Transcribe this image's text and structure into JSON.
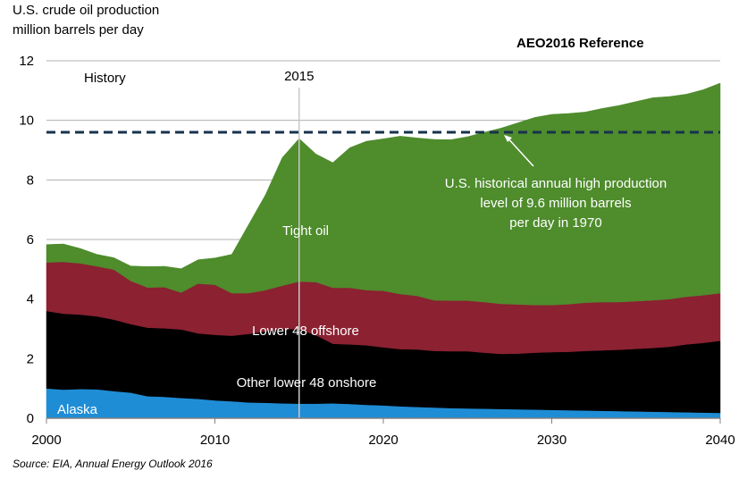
{
  "chart_data": {
    "type": "area",
    "stacked": true,
    "ylabel_line1": "U.S. crude oil production",
    "ylabel_line2": "million barrels per day",
    "scenario": "AEO2016 Reference",
    "history_label": "History",
    "marker_year": 2015,
    "marker_label": "2015",
    "xlim": [
      2000,
      2040
    ],
    "ylim": [
      0,
      12
    ],
    "x_ticks": [
      2000,
      2010,
      2020,
      2030,
      2040
    ],
    "y_ticks": [
      0,
      2,
      4,
      6,
      8,
      10,
      12
    ],
    "grid": "horizontal",
    "x": [
      2000,
      2001,
      2002,
      2003,
      2004,
      2005,
      2006,
      2007,
      2008,
      2009,
      2010,
      2011,
      2012,
      2013,
      2014,
      2015,
      2016,
      2017,
      2018,
      2019,
      2020,
      2021,
      2022,
      2023,
      2024,
      2025,
      2026,
      2027,
      2028,
      2029,
      2030,
      2031,
      2032,
      2033,
      2034,
      2035,
      2036,
      2037,
      2038,
      2039,
      2040
    ],
    "series": [
      {
        "name": "Alaska",
        "color": "#1f8dd6",
        "values": [
          1.0,
          0.96,
          0.98,
          0.97,
          0.91,
          0.86,
          0.74,
          0.72,
          0.68,
          0.65,
          0.6,
          0.57,
          0.53,
          0.52,
          0.5,
          0.49,
          0.49,
          0.5,
          0.48,
          0.45,
          0.43,
          0.4,
          0.38,
          0.36,
          0.34,
          0.33,
          0.32,
          0.31,
          0.3,
          0.29,
          0.28,
          0.27,
          0.26,
          0.25,
          0.24,
          0.23,
          0.22,
          0.21,
          0.2,
          0.19,
          0.18
        ]
      },
      {
        "name": "Other lower 48 onshore",
        "color": "#000000",
        "values": [
          2.6,
          2.55,
          2.5,
          2.45,
          2.4,
          2.3,
          2.3,
          2.3,
          2.3,
          2.2,
          2.2,
          2.2,
          2.3,
          2.4,
          2.5,
          2.5,
          2.3,
          2.0,
          2.0,
          2.0,
          1.95,
          1.92,
          1.93,
          1.9,
          1.91,
          1.92,
          1.88,
          1.85,
          1.87,
          1.91,
          1.94,
          1.96,
          2.0,
          2.03,
          2.06,
          2.1,
          2.14,
          2.19,
          2.28,
          2.34,
          2.42
        ]
      },
      {
        "name": "Lower 48 offshore",
        "color": "#8b2131",
        "values": [
          1.63,
          1.74,
          1.72,
          1.68,
          1.68,
          1.45,
          1.35,
          1.38,
          1.24,
          1.67,
          1.68,
          1.43,
          1.37,
          1.38,
          1.45,
          1.6,
          1.78,
          1.88,
          1.9,
          1.85,
          1.9,
          1.85,
          1.8,
          1.7,
          1.7,
          1.7,
          1.7,
          1.68,
          1.65,
          1.6,
          1.58,
          1.6,
          1.62,
          1.62,
          1.6,
          1.6,
          1.6,
          1.6,
          1.6,
          1.6,
          1.6
        ]
      },
      {
        "name": "Tight oil",
        "color": "#4e8c2c",
        "values": [
          0.6,
          0.6,
          0.5,
          0.4,
          0.4,
          0.5,
          0.7,
          0.7,
          0.8,
          0.8,
          0.9,
          1.3,
          2.3,
          3.2,
          4.3,
          4.8,
          4.3,
          4.2,
          4.7,
          5.0,
          5.1,
          5.3,
          5.3,
          5.4,
          5.4,
          5.5,
          5.7,
          5.9,
          6.1,
          6.3,
          6.4,
          6.4,
          6.4,
          6.5,
          6.6,
          6.7,
          6.8,
          6.8,
          6.8,
          6.9,
          7.05
        ]
      }
    ],
    "series_labels": [
      "Alaska",
      "Other lower 48 onshore",
      "Lower 48 offshore",
      "Tight oil"
    ],
    "reference_line": {
      "value": 9.6,
      "annotation": [
        "U.S. historical annual high production",
        "level of 9.6 million barrels",
        "per day in 1970"
      ]
    }
  },
  "source": "Source:  EIA, Annual Energy Outlook 2016"
}
